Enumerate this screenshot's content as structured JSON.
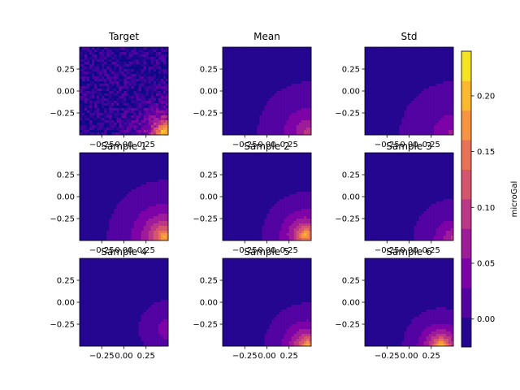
{
  "chart_data": {
    "type": "heatmap",
    "colormap": "plasma",
    "panels": [
      {
        "title": "Target",
        "kind": "target",
        "source": [
          0.46,
          -0.46
        ],
        "amp": 0.24,
        "decay": 7.0
      },
      {
        "title": "Mean",
        "kind": "smooth",
        "source": [
          0.48,
          -0.48
        ],
        "amp": 0.12,
        "decay": 4.0
      },
      {
        "title": "Std",
        "kind": "smooth",
        "source": [
          0.5,
          -0.5
        ],
        "amp": 0.08,
        "decay": 3.2
      },
      {
        "title": "Sample 1",
        "kind": "smooth",
        "source": [
          0.46,
          -0.46
        ],
        "amp": 0.21,
        "decay": 4.5
      },
      {
        "title": "Sample 2",
        "kind": "smooth",
        "source": [
          0.44,
          -0.44
        ],
        "amp": 0.22,
        "decay": 6.0
      },
      {
        "title": "Sample 3",
        "kind": "smooth",
        "source": [
          0.5,
          -0.48
        ],
        "amp": 0.11,
        "decay": 5.0
      },
      {
        "title": "Sample 4",
        "kind": "smooth",
        "source": [
          0.5,
          -0.3
        ],
        "amp": 0.07,
        "decay": 5.5
      },
      {
        "title": "Sample 5",
        "kind": "smooth",
        "source": [
          0.46,
          -0.5
        ],
        "amp": 0.22,
        "decay": 6.0
      },
      {
        "title": "Sample 6",
        "kind": "smooth",
        "source": [
          0.36,
          -0.5
        ],
        "amp": 0.24,
        "decay": 7.0
      }
    ],
    "xlim": [
      -0.5,
      0.5
    ],
    "ylim": [
      -0.5,
      0.5
    ],
    "xticks": [
      -0.25,
      0.0,
      0.25
    ],
    "yticks": [
      0.25,
      0.0,
      -0.25
    ],
    "xtick_labels": [
      "−0.25",
      "0.00",
      "0.25"
    ],
    "ytick_labels": [
      "0.25",
      "0.00",
      "−0.25"
    ],
    "colorbar": {
      "label": "microGal",
      "vmin": -0.025,
      "vmax": 0.24,
      "ticks": [
        0.2,
        0.15,
        0.1,
        0.05,
        0.0
      ],
      "tick_labels": [
        "0.20",
        "0.15",
        "0.10",
        "0.05",
        "0.00"
      ]
    },
    "levels": 10
  }
}
